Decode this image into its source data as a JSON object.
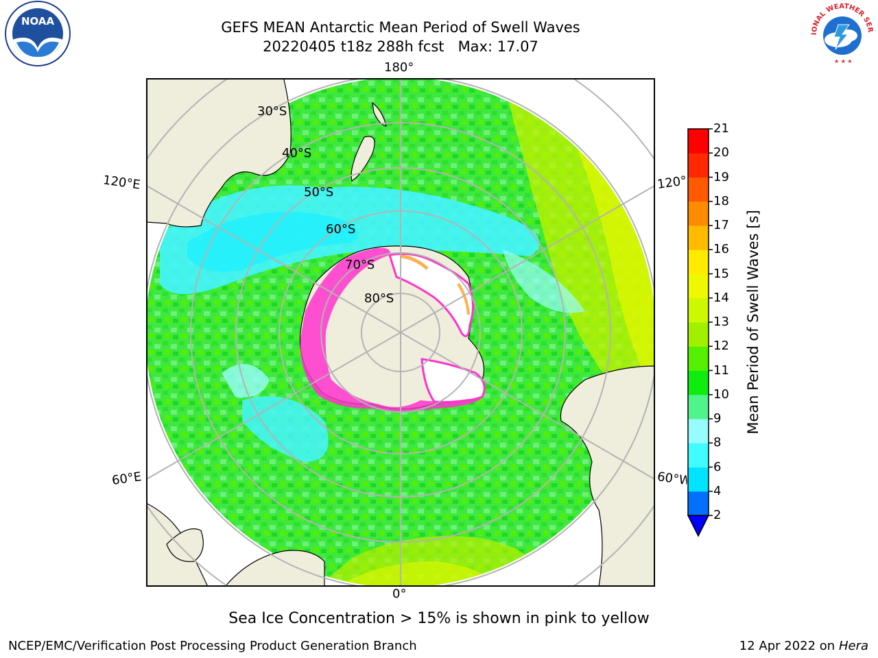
{
  "header": {
    "title_line1": "GEFS MEAN Antarctic Mean Period of Swell Waves",
    "title_line2": "20220405 t18z 288h fcst   Max: 17.07"
  },
  "logos": {
    "left": {
      "name": "noaa-logo",
      "text": "NOAA"
    },
    "right": {
      "name": "nws-logo",
      "text": "NATIONAL WEATHER SERVICE"
    }
  },
  "map": {
    "longitude_labels": {
      "top": "180°",
      "bottom": "0°",
      "upper_left": "120°E",
      "upper_right": "120°W",
      "lower_left": "60°E",
      "lower_right": "60°W"
    },
    "latitude_labels": [
      "30°S",
      "40°S",
      "50°S",
      "60°S",
      "70°S",
      "80°S"
    ],
    "colors": {
      "land": "#efeddc",
      "ocean_base": "#2ee82e",
      "ice": "#ffffff",
      "ice_edge": "#ff33cc",
      "grid": "#b3b3b3"
    }
  },
  "colorbar": {
    "title": "Mean Period of Swell Waves [s]",
    "ticks": [
      "21",
      "20",
      "19",
      "18",
      "17",
      "16",
      "15",
      "14",
      "13",
      "12",
      "11",
      "10",
      "9",
      "8",
      "6",
      "4",
      "2"
    ],
    "colors": [
      "#0000ff",
      "#0070ff",
      "#00e4ff",
      "#40fbff",
      "#98fcff",
      "#50f48a",
      "#10ec10",
      "#55f000",
      "#a0f000",
      "#ccf800",
      "#f0f800",
      "#ffea00",
      "#ffbb00",
      "#ff8c00",
      "#ff5a00",
      "#ff2800",
      "#ff0000"
    ]
  },
  "note": "Sea Ice Concentration > 15% is shown in pink to yellow",
  "footer": {
    "left": "NCEP/EMC/Verification Post Processing Product Generation Branch",
    "right_date": "12 Apr 2022 on ",
    "right_host": "Hera"
  }
}
